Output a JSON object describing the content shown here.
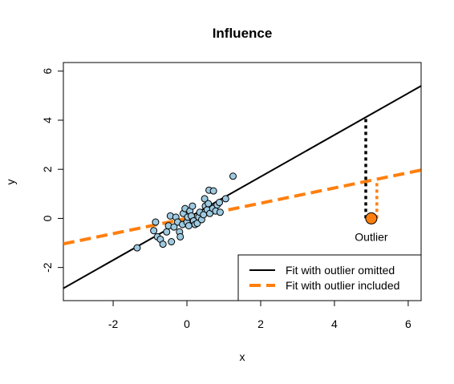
{
  "chart_data": {
    "type": "scatter",
    "title": "Influence",
    "xlabel": "x",
    "ylabel": "y",
    "xlim": [
      -3.35,
      6.35
    ],
    "ylim": [
      -3.35,
      6.35
    ],
    "x_ticks": [
      -2,
      0,
      2,
      4,
      6
    ],
    "y_ticks": [
      -2,
      0,
      2,
      4,
      6
    ],
    "grid": false,
    "legend_position": "bottom-right",
    "colors": {
      "points_fill": "#9ecae1",
      "points_stroke": "#000000",
      "outlier_fill": "#ff7f0e",
      "fit_omitted": "#000000",
      "fit_included": "#ff7f0e",
      "residual_omitted": "#000000",
      "residual_included": "#ff7f0e"
    },
    "points": [
      {
        "x": -1.35,
        "y": -1.2
      },
      {
        "x": -0.9,
        "y": -0.5
      },
      {
        "x": -0.85,
        "y": -0.15
      },
      {
        "x": -0.8,
        "y": -0.75
      },
      {
        "x": -0.72,
        "y": -0.85
      },
      {
        "x": -0.65,
        "y": -1.05
      },
      {
        "x": -0.55,
        "y": -0.55
      },
      {
        "x": -0.5,
        "y": -0.3
      },
      {
        "x": -0.45,
        "y": 0.1
      },
      {
        "x": -0.42,
        "y": -0.95
      },
      {
        "x": -0.35,
        "y": -0.35
      },
      {
        "x": -0.3,
        "y": 0.05
      },
      {
        "x": -0.25,
        "y": -0.15
      },
      {
        "x": -0.2,
        "y": -0.55
      },
      {
        "x": -0.18,
        "y": -0.75
      },
      {
        "x": -0.12,
        "y": -0.25
      },
      {
        "x": -0.1,
        "y": 0.2
      },
      {
        "x": -0.05,
        "y": 0.4
      },
      {
        "x": 0.0,
        "y": -0.15
      },
      {
        "x": 0.02,
        "y": 0.05
      },
      {
        "x": 0.05,
        "y": -0.3
      },
      {
        "x": 0.08,
        "y": 0.3
      },
      {
        "x": 0.12,
        "y": 0.1
      },
      {
        "x": 0.15,
        "y": 0.5
      },
      {
        "x": 0.18,
        "y": -0.1
      },
      {
        "x": 0.22,
        "y": -0.25
      },
      {
        "x": 0.28,
        "y": -0.2
      },
      {
        "x": 0.32,
        "y": 0.05
      },
      {
        "x": 0.35,
        "y": 0.25
      },
      {
        "x": 0.4,
        "y": -0.05
      },
      {
        "x": 0.45,
        "y": 0.15
      },
      {
        "x": 0.48,
        "y": 0.8
      },
      {
        "x": 0.5,
        "y": 0.5
      },
      {
        "x": 0.55,
        "y": 0.35
      },
      {
        "x": 0.58,
        "y": 0.6
      },
      {
        "x": 0.6,
        "y": 1.15
      },
      {
        "x": 0.62,
        "y": 0.2
      },
      {
        "x": 0.7,
        "y": 0.4
      },
      {
        "x": 0.72,
        "y": 1.12
      },
      {
        "x": 0.78,
        "y": 0.3
      },
      {
        "x": 0.82,
        "y": 0.55
      },
      {
        "x": 0.88,
        "y": 0.65
      },
      {
        "x": 0.9,
        "y": 0.25
      },
      {
        "x": 1.05,
        "y": 0.8
      },
      {
        "x": 1.25,
        "y": 1.72
      }
    ],
    "outlier": {
      "x": 5.0,
      "y": 0.0,
      "label": "Outlier"
    },
    "fits": [
      {
        "name": "Fit with outlier omitted",
        "intercept": 0.0,
        "slope": 0.85,
        "style": "solid"
      },
      {
        "name": "Fit with outlier included",
        "intercept": 0.0,
        "slope": 0.31,
        "style": "dashed"
      }
    ],
    "residuals": [
      {
        "x": 4.85,
        "y_from": 0.0,
        "y_to": 4.12,
        "series": "omitted"
      },
      {
        "x": 5.15,
        "y_from": 0.0,
        "y_to": 1.55,
        "series": "included"
      }
    ]
  }
}
